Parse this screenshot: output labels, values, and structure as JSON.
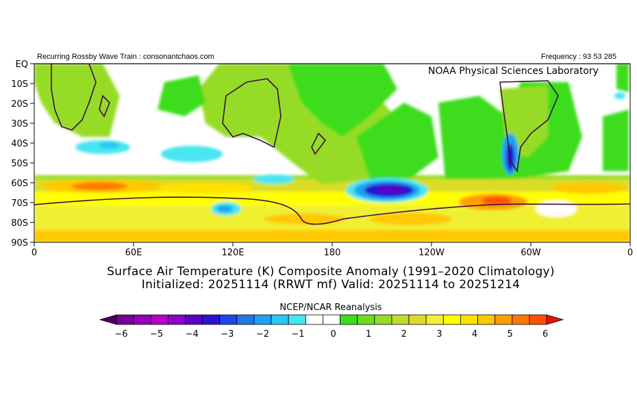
{
  "header": {
    "left": "Recurring Rossby Wave Train : consonantchaos.com",
    "right": "Frequency : 93 53 285",
    "lab": "NOAA Physical Sciences Laboratory"
  },
  "map": {
    "lat_labels": [
      "EQ",
      "10S",
      "20S",
      "30S",
      "40S",
      "50S",
      "60S",
      "70S",
      "80S",
      "90S"
    ],
    "lon_labels": [
      "0",
      "60E",
      "120E",
      "180",
      "120W",
      "60W",
      "0"
    ]
  },
  "titles": {
    "line1": "Surface Air Temperature (K) Composite Anomaly (1991–2020 Climatology)",
    "line2": "Initialized: 20251114 (RRWT mf) Valid: 20251114 to 20251214"
  },
  "colorbar": {
    "title": "NCEP/NCAR Reanalysis",
    "tick_labels": [
      "−6",
      "−5",
      "−4",
      "−3",
      "−2",
      "−1",
      "0",
      "1",
      "2",
      "3",
      "4",
      "5",
      "6"
    ],
    "colors": [
      "#46005a",
      "#780096",
      "#9600b4",
      "#b400c8",
      "#8c00c8",
      "#5a00c8",
      "#2814d2",
      "#1e46e6",
      "#1e78e6",
      "#1ea0f0",
      "#28c8f0",
      "#46e6f0",
      "#ffffff",
      "#ffffff",
      "#3cdc1e",
      "#6edc1e",
      "#96dc28",
      "#bedc2d",
      "#dcdc28",
      "#f0f032",
      "#ffff00",
      "#ffe100",
      "#ffc800",
      "#ffa000",
      "#ff7800",
      "#ff5000",
      "#e61400"
    ]
  }
}
